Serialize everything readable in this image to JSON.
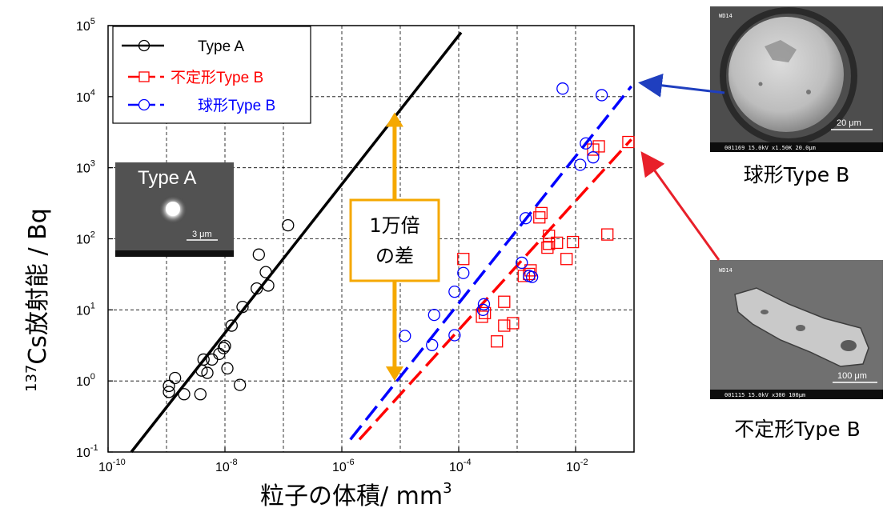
{
  "chart_data": {
    "type": "scatter",
    "xlabel": "粒子の体積/ mm",
    "xlabel_sup": "3",
    "ylabel_sup": "137",
    "ylabel": "Cs放射能 / Bq",
    "x_scale": "log",
    "y_scale": "log",
    "xlim": [
      1e-10,
      0.1
    ],
    "ylim": [
      0.1,
      100000
    ],
    "grid": true,
    "legend_position": "top-left",
    "x_ticks": [
      {
        "base": "10",
        "exp": "-10"
      },
      {
        "base": "10",
        "exp": "-8"
      },
      {
        "base": "10",
        "exp": "-6"
      },
      {
        "base": "10",
        "exp": "-4"
      },
      {
        "base": "10",
        "exp": "-2"
      }
    ],
    "y_ticks": [
      {
        "base": "10",
        "exp": "-1"
      },
      {
        "base": "10",
        "exp": "0"
      },
      {
        "base": "10",
        "exp": "1"
      },
      {
        "base": "10",
        "exp": "2"
      },
      {
        "base": "10",
        "exp": "3"
      },
      {
        "base": "10",
        "exp": "4"
      },
      {
        "base": "10",
        "exp": "5"
      }
    ],
    "series": [
      {
        "name": "Type A",
        "color": "#000000",
        "marker": "circle",
        "points": [
          [
            1.1e-09,
            0.7
          ],
          [
            1.1e-09,
            0.85
          ],
          [
            1.4e-09,
            1.1
          ],
          [
            2e-09,
            0.65
          ],
          [
            3.8e-09,
            0.65
          ],
          [
            4e-09,
            1.4
          ],
          [
            4.3e-09,
            2.0
          ],
          [
            5e-09,
            1.3
          ],
          [
            6e-09,
            2.0
          ],
          [
            8e-09,
            2.4
          ],
          [
            9.5e-09,
            2.9
          ],
          [
            1e-08,
            3.1
          ],
          [
            1.1e-08,
            1.5
          ],
          [
            1.3e-08,
            6.0
          ],
          [
            1.8e-08,
            0.88
          ],
          [
            2e-08,
            11
          ],
          [
            3.5e-08,
            20
          ],
          [
            3.8e-08,
            60
          ],
          [
            5e-08,
            34
          ],
          [
            5.5e-08,
            22
          ],
          [
            1.2e-07,
            155
          ]
        ]
      },
      {
        "name": "不定形Type B",
        "color": "#ff0000",
        "marker": "square",
        "points": [
          [
            0.00012,
            52
          ],
          [
            0.00025,
            8
          ],
          [
            0.00028,
            9
          ],
          [
            0.00045,
            3.6
          ],
          [
            0.0006,
            13
          ],
          [
            0.0006,
            6.0
          ],
          [
            0.00085,
            6.5
          ],
          [
            0.0013,
            30
          ],
          [
            0.0016,
            32
          ],
          [
            0.0017,
            36
          ],
          [
            0.0024,
            200
          ],
          [
            0.0026,
            230
          ],
          [
            0.0033,
            75
          ],
          [
            0.0035,
            110
          ],
          [
            0.0035,
            85
          ],
          [
            0.0048,
            88
          ],
          [
            0.007,
            52
          ],
          [
            0.009,
            90
          ],
          [
            0.02,
            1800
          ],
          [
            0.025,
            2000
          ],
          [
            0.035,
            115
          ],
          [
            0.08,
            2300
          ]
        ]
      },
      {
        "name": "球形Type B",
        "color": "#0000ff",
        "marker": "circle",
        "points": [
          [
            1.2e-05,
            4.3
          ],
          [
            3.5e-05,
            3.2
          ],
          [
            3.8e-05,
            8.5
          ],
          [
            8.5e-05,
            4.4
          ],
          [
            8.5e-05,
            18
          ],
          [
            0.00012,
            33
          ],
          [
            0.00026,
            10
          ],
          [
            0.00027,
            12
          ],
          [
            0.0012,
            46
          ],
          [
            0.0014,
            195
          ],
          [
            0.0016,
            30
          ],
          [
            0.0018,
            29
          ],
          [
            0.006,
            13000
          ],
          [
            0.012,
            1100
          ],
          [
            0.015,
            2200
          ],
          [
            0.02,
            1400
          ],
          [
            0.028,
            10500
          ]
        ]
      }
    ],
    "fit_lines": [
      {
        "series": "Type A",
        "style": "solid",
        "color": "#000000",
        "x_range": [
          2.5e-10,
          0.00011
        ],
        "y_range": [
          0.1,
          80000
        ]
      },
      {
        "series": "不定形Type B",
        "style": "dashed",
        "color": "#ff0000",
        "x_range": [
          2e-06,
          0.09
        ],
        "y_range": [
          0.15,
          2500
        ]
      },
      {
        "series": "球形Type B",
        "style": "dashed",
        "color": "#0000ff",
        "x_range": [
          1.4e-06,
          0.09
        ],
        "y_range": [
          0.15,
          14000
        ]
      }
    ],
    "annotation": {
      "text_line1": "1万倍",
      "text_line2": "の差",
      "arrow_color": "#f5a800",
      "arrow_x": 8e-06,
      "arrow_y_range": [
        1,
        6000
      ]
    }
  },
  "inset_image": {
    "label": "Type A",
    "scale_bar": "3 μm"
  },
  "sem_images": [
    {
      "caption": "球形Type B",
      "scale_bar": "20 μm",
      "tag": "WD14",
      "footer": "001169 15.0kV x1.50K 20.0μm"
    },
    {
      "caption": "不定形Type B",
      "scale_bar": "100 μm",
      "tag": "WD14",
      "footer": "001115 15.0kV x300 100μm"
    }
  ],
  "colors": {
    "type_a": "#000000",
    "type_b_irregular": "#ff0000",
    "type_b_spherical": "#0000ff",
    "annotation_orange": "#f5a800",
    "arrow_blue": "#1f3fbf",
    "arrow_red": "#e8202a"
  }
}
